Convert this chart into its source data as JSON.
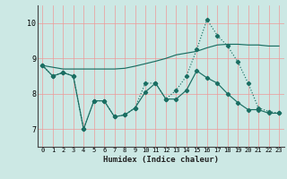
{
  "xlabel": "Humidex (Indice chaleur)",
  "ylabel": "",
  "background_color": "#cce8e4",
  "grid_color": "#ee9999",
  "line_color": "#1a6e62",
  "x": [
    0,
    1,
    2,
    3,
    4,
    5,
    6,
    7,
    8,
    9,
    10,
    11,
    12,
    13,
    14,
    15,
    16,
    17,
    18,
    19,
    20,
    21,
    22,
    23
  ],
  "line1": [
    8.8,
    8.5,
    8.6,
    8.5,
    7.0,
    7.8,
    7.8,
    7.35,
    7.4,
    7.6,
    8.3,
    8.3,
    7.85,
    8.1,
    8.5,
    9.25,
    10.1,
    9.65,
    9.35,
    8.9,
    8.3,
    7.6,
    7.5,
    7.45
  ],
  "line2": [
    8.8,
    8.5,
    8.6,
    8.5,
    7.0,
    7.8,
    7.8,
    7.35,
    7.4,
    7.6,
    8.05,
    8.3,
    7.85,
    7.85,
    8.1,
    8.65,
    8.45,
    8.3,
    8.0,
    7.75,
    7.55,
    7.55,
    7.45,
    7.45
  ],
  "line3": [
    8.8,
    8.75,
    8.7,
    8.7,
    8.7,
    8.7,
    8.7,
    8.7,
    8.72,
    8.78,
    8.85,
    8.92,
    9.0,
    9.1,
    9.15,
    9.2,
    9.3,
    9.38,
    9.4,
    9.4,
    9.38,
    9.38,
    9.35,
    9.35
  ],
  "ylim": [
    6.5,
    10.5
  ],
  "xlim": [
    -0.5,
    23.5
  ],
  "yticks": [
    7,
    8,
    9,
    10
  ],
  "xticks": [
    0,
    1,
    2,
    3,
    4,
    5,
    6,
    7,
    8,
    9,
    10,
    11,
    12,
    13,
    14,
    15,
    16,
    17,
    18,
    19,
    20,
    21,
    22,
    23
  ]
}
